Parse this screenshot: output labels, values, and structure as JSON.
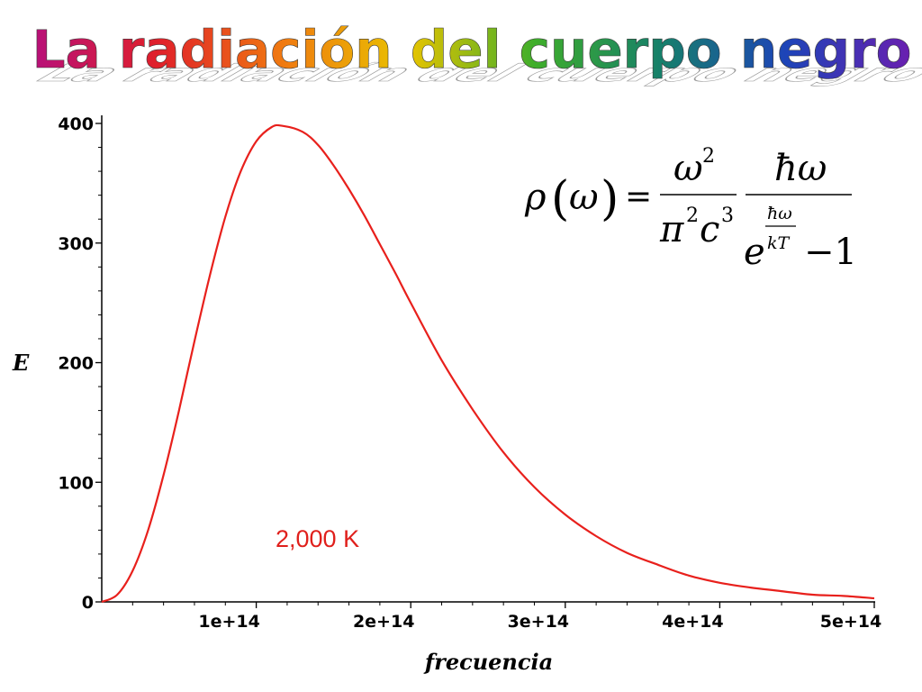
{
  "slide": {
    "title": "La radiación del cuerpo negro",
    "title_gradient": [
      "#b7107a",
      "#e0202a",
      "#f07a10",
      "#e8c400",
      "#3fae2a",
      "#16806a",
      "#1d44b8",
      "#6a1fb0"
    ]
  },
  "formula": {
    "lhs": "ρ(ω) =",
    "factor_numerator": "ω²",
    "factor_denominator": "π²c³",
    "planck_numerator": "ħω",
    "planck_denominator": "e^(ħω/kT) − 1"
  },
  "chart_data": {
    "type": "line",
    "title": "",
    "xlabel": "frecuencia",
    "ylabel": "E",
    "xlim": [
      0,
      500000000000000.0
    ],
    "ylim": [
      0,
      400
    ],
    "x_ticks": [
      100000000000000.0,
      200000000000000.0,
      300000000000000.0,
      400000000000000.0,
      500000000000000.0
    ],
    "x_tick_labels": [
      "1e+14",
      "2e+14",
      "3e+14",
      "4e+14",
      "5e+14"
    ],
    "y_ticks": [
      0,
      100,
      200,
      300,
      400
    ],
    "y_tick_labels": [
      "0",
      "100",
      "200",
      "300",
      "400"
    ],
    "grid": false,
    "annotation": {
      "text": "2,000 K",
      "color": "#e0201c"
    },
    "series": [
      {
        "color": "#e8201c",
        "x": [
          0,
          10000000000000.0,
          20000000000000.0,
          30000000000000.0,
          40000000000000.0,
          50000000000000.0,
          60000000000000.0,
          70000000000000.0,
          80000000000000.0,
          90000000000000.0,
          100000000000000.0,
          110000000000000.0,
          117000000000000.0,
          130000000000000.0,
          140000000000000.0,
          150000000000000.0,
          160000000000000.0,
          170000000000000.0,
          180000000000000.0,
          190000000000000.0,
          200000000000000.0,
          220000000000000.0,
          240000000000000.0,
          260000000000000.0,
          280000000000000.0,
          300000000000000.0,
          320000000000000.0,
          340000000000000.0,
          360000000000000.0,
          380000000000000.0,
          400000000000000.0,
          420000000000000.0,
          440000000000000.0,
          460000000000000.0,
          480000000000000.0,
          500000000000000.0
        ],
        "y": [
          0,
          6,
          26,
          60,
          106,
          160,
          218,
          273,
          322,
          360,
          385,
          397,
          398,
          393,
          382,
          365,
          345,
          323,
          299,
          275,
          250,
          202,
          161,
          125,
          96,
          73,
          55,
          41,
          31,
          22,
          16,
          12,
          9,
          6,
          5,
          3
        ]
      }
    ]
  }
}
